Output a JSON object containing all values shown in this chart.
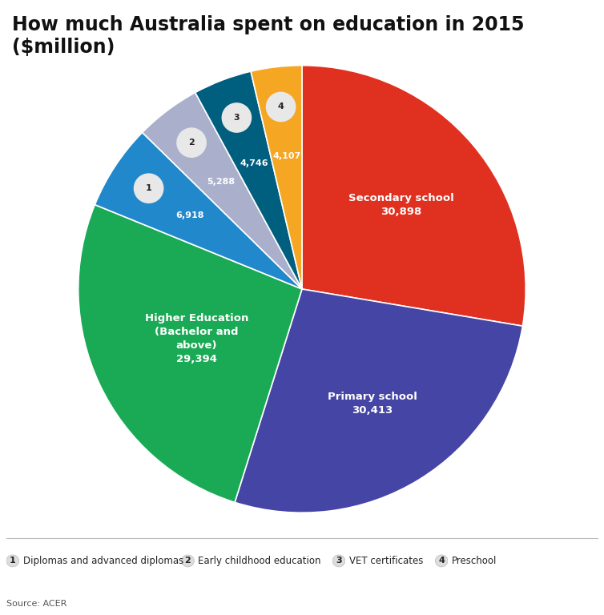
{
  "title": "How much Australia spent on education in 2015 ($million)",
  "source": "Source: ACER",
  "slices": [
    {
      "label": "Secondary school",
      "value": 30898,
      "color": "#e03020",
      "text_label": "Secondary school\n30,898",
      "show_name": true,
      "numbered": false
    },
    {
      "label": "Primary school",
      "value": 30413,
      "color": "#4545a5",
      "text_label": "Primary school\n30,413",
      "show_name": true,
      "numbered": false
    },
    {
      "label": "Higher Education (Bachelor and above)",
      "value": 29394,
      "color": "#1aaa55",
      "text_label": "Higher Education\n(Bachelor and\nabove)\n29,394",
      "show_name": true,
      "numbered": false
    },
    {
      "label": "Diplomas and advanced diplomas",
      "value": 6918,
      "color": "#2288cc",
      "text_label": "6,918",
      "show_name": false,
      "numbered": true,
      "number": 1
    },
    {
      "label": "Early childhood education",
      "value": 5288,
      "color": "#aab0cc",
      "text_label": "5,288",
      "show_name": false,
      "numbered": true,
      "number": 2
    },
    {
      "label": "VET certificates",
      "value": 4746,
      "color": "#005f7f",
      "text_label": "4,746",
      "show_name": false,
      "numbered": true,
      "number": 3
    },
    {
      "label": "Preschool",
      "value": 4107,
      "color": "#f5a623",
      "text_label": "4,107",
      "show_name": false,
      "numbered": true,
      "number": 4
    }
  ],
  "legend_items": [
    {
      "number": 1,
      "label": "Diplomas and advanced diplomas"
    },
    {
      "number": 2,
      "label": "Early childhood education"
    },
    {
      "number": 3,
      "label": "VET certificates"
    },
    {
      "number": 4,
      "label": "Preschool"
    }
  ],
  "title_fontsize": 17,
  "background_color": "#ffffff",
  "label_text_color_large": "white",
  "label_text_color_small": "white",
  "number_circle_color": "#e8e8e8",
  "number_text_color": "#222222"
}
